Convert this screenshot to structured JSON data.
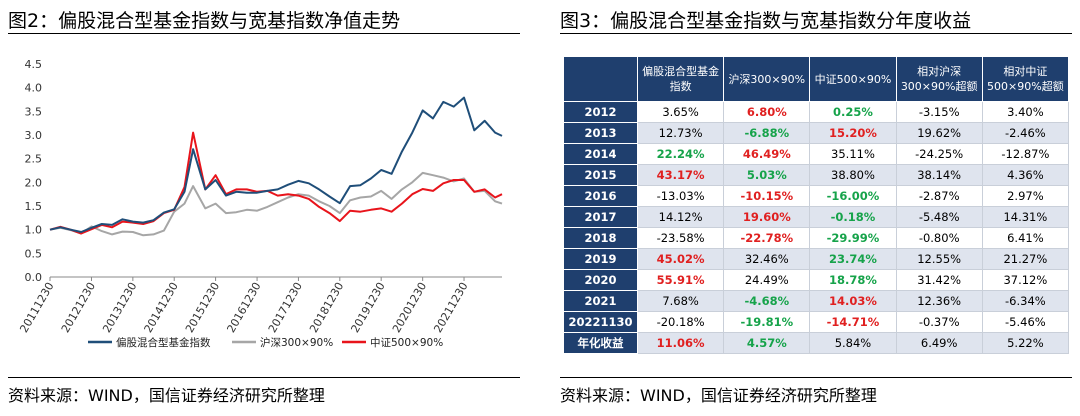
{
  "left_panel": {
    "title": "图2：偏股混合型基金指数与宽基指数净值走势",
    "source": "资料来源：WIND，国信证券经济研究所整理"
  },
  "right_panel": {
    "title": "图3：偏股混合型基金指数与宽基指数分年度收益",
    "source": "资料来源：WIND，国信证券经济研究所整理",
    "table": {
      "columns": [
        "偏股混合型基金指数",
        "沪深300×90%",
        "中证500×90%",
        "相对沪深300×90%超额",
        "相对中证500×90%超额"
      ],
      "rows": [
        {
          "year": "2012",
          "cells": [
            "3.65%",
            "6.80%",
            "0.25%",
            "-3.15%",
            "3.40%"
          ],
          "colors": [
            "",
            "red",
            "green",
            "",
            ""
          ]
        },
        {
          "year": "2013",
          "cells": [
            "12.73%",
            "-6.88%",
            "15.20%",
            "19.62%",
            "-2.46%"
          ],
          "colors": [
            "",
            "green",
            "red",
            "",
            ""
          ]
        },
        {
          "year": "2014",
          "cells": [
            "22.24%",
            "46.49%",
            "35.11%",
            "-24.25%",
            "-12.87%"
          ],
          "colors": [
            "green",
            "red",
            "",
            "",
            ""
          ]
        },
        {
          "year": "2015",
          "cells": [
            "43.17%",
            "5.03%",
            "38.80%",
            "38.14%",
            "4.36%"
          ],
          "colors": [
            "red",
            "green",
            "",
            "",
            ""
          ]
        },
        {
          "year": "2016",
          "cells": [
            "-13.03%",
            "-10.15%",
            "-16.00%",
            "-2.87%",
            "2.97%"
          ],
          "colors": [
            "",
            "red",
            "green",
            "",
            ""
          ]
        },
        {
          "year": "2017",
          "cells": [
            "14.12%",
            "19.60%",
            "-0.18%",
            "-5.48%",
            "14.31%"
          ],
          "colors": [
            "",
            "red",
            "green",
            "",
            ""
          ]
        },
        {
          "year": "2018",
          "cells": [
            "-23.58%",
            "-22.78%",
            "-29.99%",
            "-0.80%",
            "6.41%"
          ],
          "colors": [
            "",
            "red",
            "green",
            "",
            ""
          ]
        },
        {
          "year": "2019",
          "cells": [
            "45.02%",
            "32.46%",
            "23.74%",
            "12.55%",
            "21.27%"
          ],
          "colors": [
            "red",
            "",
            "green",
            "",
            ""
          ]
        },
        {
          "year": "2020",
          "cells": [
            "55.91%",
            "24.49%",
            "18.78%",
            "31.42%",
            "37.12%"
          ],
          "colors": [
            "red",
            "",
            "green",
            "",
            ""
          ]
        },
        {
          "year": "2021",
          "cells": [
            "7.68%",
            "-4.68%",
            "14.03%",
            "12.36%",
            "-6.34%"
          ],
          "colors": [
            "",
            "green",
            "red",
            "",
            ""
          ]
        },
        {
          "year": "20221130",
          "cells": [
            "-20.18%",
            "-19.81%",
            "-14.71%",
            "-0.37%",
            "-5.46%"
          ],
          "colors": [
            "",
            "green",
            "red",
            "",
            ""
          ]
        },
        {
          "year": "年化收益",
          "cells": [
            "11.06%",
            "4.57%",
            "5.84%",
            "6.49%",
            "5.22%"
          ],
          "colors": [
            "red",
            "green",
            "",
            "",
            ""
          ]
        }
      ]
    }
  },
  "colors": {
    "fund": "#1f4e79",
    "hs300": "#a6a6a6",
    "zz500": "#e8141b",
    "header_bg": "#1f3f6e",
    "pos": "#e02020",
    "neg": "#16a34a"
  },
  "chart_data": {
    "type": "line",
    "title": "",
    "xlabel": "",
    "ylabel": "",
    "ylim": [
      0.0,
      4.5
    ],
    "yticks": [
      "0.0",
      "0.5",
      "1.0",
      "1.5",
      "2.0",
      "2.5",
      "3.0",
      "3.5",
      "4.0",
      "4.5"
    ],
    "xticks": [
      "20111230",
      "20121230",
      "20131230",
      "20141230",
      "20151230",
      "20161230",
      "20171230",
      "20181230",
      "20191230",
      "20201230",
      "20211230"
    ],
    "grid": false,
    "legend": "bottom",
    "x": [
      "2011-12-30",
      "2012-03-31",
      "2012-06-30",
      "2012-09-30",
      "2012-12-30",
      "2013-03-31",
      "2013-06-30",
      "2013-09-30",
      "2013-12-30",
      "2014-03-31",
      "2014-06-30",
      "2014-09-30",
      "2014-12-30",
      "2015-03-31",
      "2015-06-15",
      "2015-09-30",
      "2015-12-30",
      "2016-03-31",
      "2016-06-30",
      "2016-09-30",
      "2016-12-30",
      "2017-03-31",
      "2017-06-30",
      "2017-09-30",
      "2017-12-30",
      "2018-03-31",
      "2018-06-30",
      "2018-09-30",
      "2018-12-30",
      "2019-03-31",
      "2019-06-30",
      "2019-09-30",
      "2019-12-30",
      "2020-03-31",
      "2020-06-30",
      "2020-09-30",
      "2020-12-30",
      "2021-03-31",
      "2021-06-30",
      "2021-09-30",
      "2021-12-30",
      "2022-03-31",
      "2022-06-30",
      "2022-09-30",
      "2022-11-30"
    ],
    "series": [
      {
        "name": "偏股混合型基金指数",
        "values": [
          1.0,
          1.05,
          1.0,
          0.95,
          1.04,
          1.12,
          1.1,
          1.22,
          1.17,
          1.15,
          1.2,
          1.36,
          1.43,
          1.8,
          2.7,
          1.85,
          2.05,
          1.72,
          1.8,
          1.78,
          1.78,
          1.82,
          1.85,
          1.95,
          2.03,
          1.98,
          1.85,
          1.7,
          1.56,
          1.92,
          1.94,
          2.08,
          2.26,
          2.18,
          2.65,
          3.05,
          3.52,
          3.35,
          3.7,
          3.6,
          3.79,
          3.1,
          3.3,
          3.05,
          2.98
        ]
      },
      {
        "name": "沪深300×90%",
        "values": [
          1.0,
          1.04,
          0.99,
          0.92,
          1.07,
          0.97,
          0.9,
          0.96,
          0.95,
          0.88,
          0.9,
          0.98,
          1.38,
          1.55,
          1.92,
          1.45,
          1.55,
          1.35,
          1.37,
          1.42,
          1.4,
          1.48,
          1.58,
          1.68,
          1.75,
          1.72,
          1.6,
          1.5,
          1.35,
          1.62,
          1.68,
          1.7,
          1.82,
          1.65,
          1.85,
          2.0,
          2.2,
          2.15,
          2.1,
          2.02,
          2.08,
          1.8,
          1.82,
          1.6,
          1.55
        ]
      },
      {
        "name": "中证500×90%",
        "values": [
          1.0,
          1.06,
          1.0,
          0.92,
          1.01,
          1.1,
          1.05,
          1.17,
          1.15,
          1.12,
          1.18,
          1.35,
          1.42,
          1.9,
          3.05,
          1.85,
          2.15,
          1.75,
          1.85,
          1.85,
          1.8,
          1.82,
          1.72,
          1.75,
          1.72,
          1.65,
          1.48,
          1.35,
          1.18,
          1.4,
          1.38,
          1.42,
          1.45,
          1.38,
          1.55,
          1.75,
          1.86,
          1.82,
          1.98,
          2.05,
          2.05,
          1.8,
          1.85,
          1.68,
          1.75
        ]
      }
    ]
  }
}
